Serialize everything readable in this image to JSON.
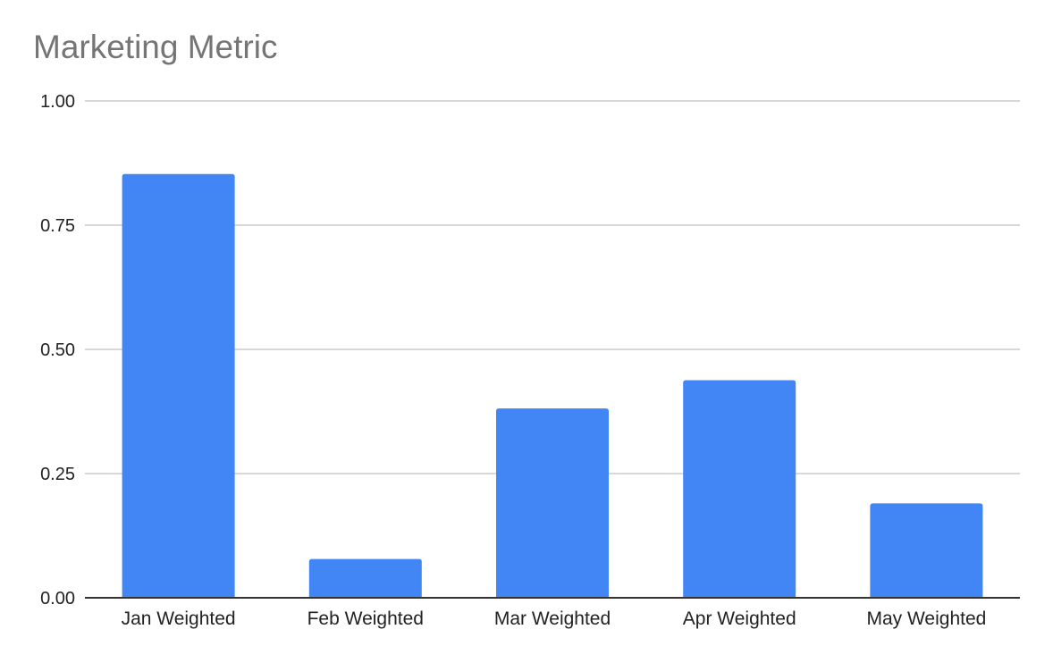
{
  "chart_data": {
    "type": "bar",
    "title": "Marketing Metric",
    "categories": [
      "Jan Weighted",
      "Feb Weighted",
      "Mar Weighted",
      "Apr Weighted",
      "May Weighted"
    ],
    "values": [
      0.853,
      0.078,
      0.381,
      0.438,
      0.19
    ],
    "ylim": [
      0,
      1
    ],
    "yticks": [
      "0.00",
      "0.25",
      "0.50",
      "0.75",
      "1.00"
    ],
    "ytick_values": [
      0,
      0.25,
      0.5,
      0.75,
      1
    ],
    "xlabel": "",
    "ylabel": "",
    "grid": true,
    "legend": "none",
    "bar_color": "#4285f4",
    "grid_color": "#cccccc",
    "axis_color": "#333333"
  }
}
